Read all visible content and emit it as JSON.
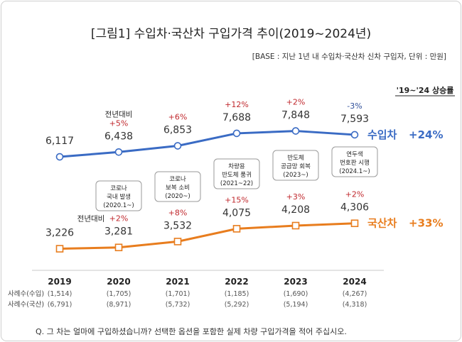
{
  "title": "[그림1] 수입차·국산차 구입가격 추이(2019~2024년)",
  "base_note": "[BASE : 지난 1년 내 수입차·국산차 신차 구입자, 단위 : 만원]",
  "question": "Q. 그 차는 얼마에 구입하셨습니까? 선택한 옵션을 포함한 실제 차량 구입가격을 적어 주십시오.",
  "growth_header": "'19~'24 상승률",
  "colors": {
    "import": "#3a6bc4",
    "domestic": "#e87d1e",
    "up": "#c0282d",
    "down": "#2f4f9a"
  },
  "chart_data": {
    "type": "line",
    "categories": [
      "2019",
      "2020",
      "2021",
      "2022",
      "2023",
      "2024"
    ],
    "series": [
      {
        "name": "수입차",
        "values": [
          6117,
          6438,
          6853,
          7688,
          7848,
          7593
        ],
        "value_labels": [
          "6,117",
          "6,438",
          "6,853",
          "7,688",
          "7,848",
          "7,593"
        ],
        "change_labels": [
          "",
          "+5%",
          "+6%",
          "+12%",
          "+2%",
          "-3%"
        ],
        "growth": "+24%"
      },
      {
        "name": "국산차",
        "values": [
          3226,
          3281,
          3532,
          4075,
          4208,
          4306
        ],
        "value_labels": [
          "3,226",
          "3,281",
          "3,532",
          "4,075",
          "4,208",
          "4,306"
        ],
        "change_labels": [
          "",
          "+2%",
          "+8%",
          "+15%",
          "+3%",
          "+2%"
        ],
        "growth": "+33%"
      }
    ],
    "yoy_label": "전년대비",
    "annotations": [
      {
        "year": "2020",
        "lines": [
          "코로나",
          "국내 발생",
          "(2020.1~)"
        ]
      },
      {
        "year": "2021",
        "lines": [
          "코로나",
          "보복 소비",
          "(2020~)"
        ]
      },
      {
        "year": "2022",
        "lines": [
          "차량용",
          "반도체 품귀",
          "(2021~22)"
        ]
      },
      {
        "year": "2023",
        "lines": [
          "반도체",
          "공급망 회복",
          "(2023~)"
        ]
      },
      {
        "year": "2024",
        "lines": [
          "연두색",
          "번호판 시행",
          "(2024.1~)"
        ]
      }
    ],
    "sample_sizes": {
      "import_label": "사례수(수입)",
      "domestic_label": "사례수(국산)",
      "import": [
        "(1,514)",
        "(1,705)",
        "(1,701)",
        "(1,185)",
        "(1,690)",
        "(4,267)"
      ],
      "domestic": [
        "(6,791)",
        "(8,971)",
        "(5,732)",
        "(5,292)",
        "(5,194)",
        "(4,318)"
      ]
    }
  }
}
